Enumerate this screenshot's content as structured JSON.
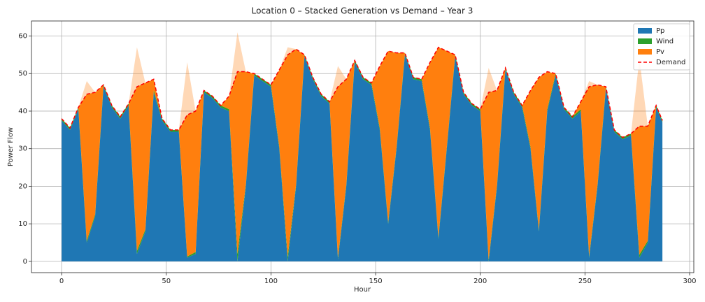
{
  "chart_data": {
    "type": "stacked_area",
    "title": "Location 0 – Stacked Generation vs Demand – Year 3",
    "x_label": "Hour",
    "y_label": "Power Flow",
    "x": [
      0,
      4,
      8,
      12,
      16,
      20,
      24,
      28,
      32,
      36,
      40,
      44,
      48,
      52,
      56,
      60,
      64,
      68,
      72,
      76,
      80,
      84,
      88,
      92,
      96,
      100,
      104,
      108,
      112,
      116,
      120,
      124,
      128,
      132,
      136,
      140,
      144,
      148,
      152,
      156,
      160,
      164,
      168,
      172,
      176,
      180,
      184,
      188,
      192,
      196,
      200,
      204,
      208,
      212,
      216,
      220,
      224,
      228,
      232,
      236,
      240,
      244,
      248,
      252,
      256,
      260,
      264,
      268,
      272,
      276,
      280,
      284,
      287
    ],
    "series": [
      {
        "name": "Pp",
        "color": "#1f77b4",
        "values": [
          37.5,
          35,
          40.5,
          5,
          12,
          46.5,
          41,
          38,
          41.5,
          2,
          8,
          45,
          37.5,
          34.5,
          34.5,
          1,
          2,
          45,
          43.5,
          41,
          40,
          0,
          20,
          49.5,
          48,
          46.5,
          30,
          0,
          20,
          54.5,
          48.5,
          44,
          42,
          0.5,
          20,
          53,
          48.5,
          47,
          35,
          10,
          30,
          55,
          48.5,
          48,
          35,
          6,
          30,
          54.5,
          44.5,
          41.5,
          40,
          0,
          20,
          51,
          44.5,
          41,
          30,
          8,
          40,
          49.5,
          40.5,
          38,
          40,
          1,
          20,
          46,
          34.5,
          32.5,
          33.5,
          1,
          5,
          41,
          37
        ]
      },
      {
        "name": "Wind",
        "color": "#2ca02c",
        "values": [
          0.5,
          0.5,
          0.5,
          0.5,
          0.5,
          0.5,
          0.5,
          0.5,
          0.5,
          0.8,
          0.5,
          0.5,
          0.5,
          0.5,
          0.5,
          0.3,
          0.5,
          0.5,
          0.5,
          0.5,
          0.5,
          2,
          0.5,
          0.5,
          0.5,
          0.5,
          0.5,
          1.2,
          0.5,
          0.5,
          0.5,
          0.5,
          0.5,
          0.5,
          0.5,
          0.5,
          0.5,
          0.5,
          0.5,
          0.5,
          0.5,
          0.5,
          0.5,
          0.5,
          0.5,
          0.5,
          0.5,
          0.5,
          0.5,
          0.5,
          0.5,
          0.5,
          0.5,
          0.5,
          0.5,
          0.5,
          0.5,
          0.5,
          0.5,
          0.5,
          0.5,
          0.5,
          0.5,
          0.5,
          0.5,
          0.5,
          0.5,
          0.5,
          0.5,
          0.8,
          0.5,
          0.5,
          0.5
        ]
      },
      {
        "name": "Pv",
        "color": "#ff7f0e",
        "values": [
          0,
          0,
          0,
          42.5,
          32.5,
          0,
          0,
          0,
          0,
          54.2,
          39,
          3,
          0,
          0,
          0,
          51.7,
          37.5,
          0,
          0,
          0,
          3.5,
          59,
          30,
          0,
          0,
          0,
          20.5,
          55.8,
          36,
          0,
          0,
          0,
          0,
          51,
          28,
          0,
          0,
          0,
          16.5,
          45.5,
          25,
          0,
          0,
          0,
          17.5,
          50.5,
          25.5,
          0,
          0,
          0,
          0,
          51,
          25,
          0,
          0,
          0,
          15,
          40.5,
          10,
          0,
          0,
          0,
          2,
          46.5,
          26.5,
          0,
          0,
          0,
          0,
          52.2,
          30.5,
          0,
          0
        ]
      }
    ],
    "demand": {
      "name": "Demand",
      "color": "#ff0000",
      "values": [
        38,
        35.5,
        41,
        44.5,
        45,
        47,
        41.5,
        38.5,
        42,
        46.5,
        47.5,
        48.5,
        38,
        35,
        35,
        39,
        40,
        45.5,
        44,
        41.5,
        44,
        50.5,
        50.5,
        50,
        48.5,
        47,
        51,
        55,
        56.5,
        55,
        49,
        44.5,
        42.5,
        46.5,
        48.5,
        53.5,
        49,
        47.5,
        52,
        56,
        55.5,
        55.5,
        49,
        48.5,
        53,
        57,
        56,
        55,
        45,
        42,
        40.5,
        45,
        45.5,
        51.5,
        45,
        41.5,
        45.5,
        49,
        50.5,
        50,
        41,
        38.5,
        42.5,
        46.5,
        47,
        46.5,
        35,
        33,
        34,
        36,
        36,
        41.5,
        37.5
      ]
    },
    "xlim": [
      -14.4,
      302
    ],
    "ylim": [
      -3,
      64
    ],
    "xticks": [
      0,
      50,
      100,
      150,
      200,
      250,
      300
    ],
    "yticks": [
      0,
      10,
      20,
      30,
      40,
      50,
      60
    ],
    "grid": true,
    "legend": "upper right"
  }
}
